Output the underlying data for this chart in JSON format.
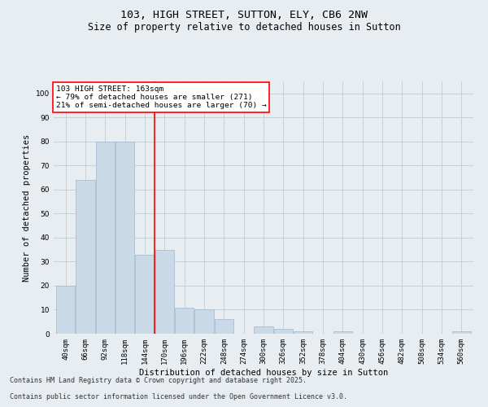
{
  "title_line1": "103, HIGH STREET, SUTTON, ELY, CB6 2NW",
  "title_line2": "Size of property relative to detached houses in Sutton",
  "xlabel": "Distribution of detached houses by size in Sutton",
  "ylabel": "Number of detached properties",
  "categories": [
    "40sqm",
    "66sqm",
    "92sqm",
    "118sqm",
    "144sqm",
    "170sqm",
    "196sqm",
    "222sqm",
    "248sqm",
    "274sqm",
    "300sqm",
    "326sqm",
    "352sqm",
    "378sqm",
    "404sqm",
    "430sqm",
    "456sqm",
    "482sqm",
    "508sqm",
    "534sqm",
    "560sqm"
  ],
  "values": [
    20,
    64,
    80,
    80,
    33,
    35,
    11,
    10,
    6,
    0,
    3,
    2,
    1,
    0,
    1,
    0,
    0,
    0,
    0,
    0,
    1
  ],
  "bar_color": "#c9d9e8",
  "bar_edge_color": "#a0b8cc",
  "grid_color": "#c8d0da",
  "background_color": "#e8edf2",
  "red_line_x": 4.5,
  "annotation_text": "103 HIGH STREET: 163sqm\n← 79% of detached houses are smaller (271)\n21% of semi-detached houses are larger (70) →",
  "annotation_box_color": "white",
  "annotation_box_edge": "red",
  "ylim": [
    0,
    105
  ],
  "yticks": [
    0,
    10,
    20,
    30,
    40,
    50,
    60,
    70,
    80,
    90,
    100
  ],
  "footer_line1": "Contains HM Land Registry data © Crown copyright and database right 2025.",
  "footer_line2": "Contains public sector information licensed under the Open Government Licence v3.0.",
  "title_fontsize": 9.5,
  "subtitle_fontsize": 8.5,
  "axis_label_fontsize": 7.5,
  "tick_fontsize": 6.5,
  "annotation_fontsize": 6.8,
  "footer_fontsize": 6.0
}
